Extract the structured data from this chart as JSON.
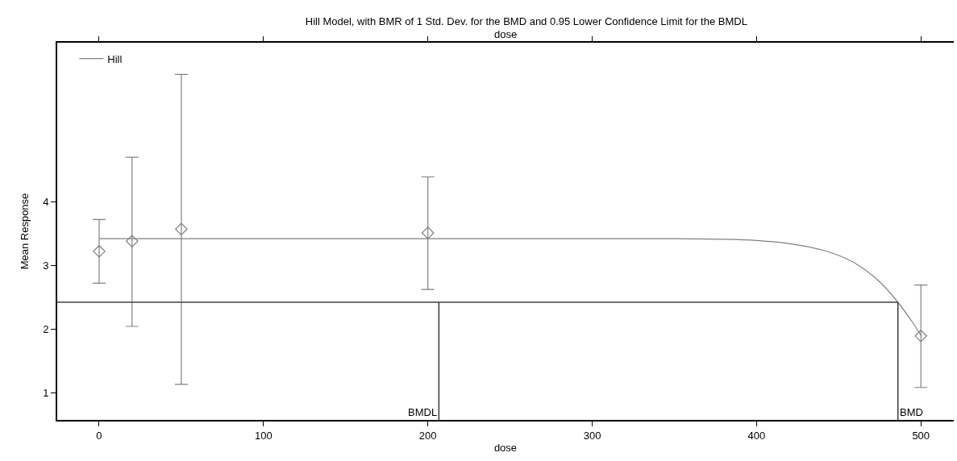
{
  "chart_data": {
    "type": "scatter",
    "title": "Hill Model, with BMR of 1 Std. Dev. for the BMD and 0.95 Lower Confidence Limit for the BMDL",
    "xlabel": "dose",
    "ylabel": "Mean Response",
    "x2label": "dose",
    "xlim": [
      -25.5,
      520
    ],
    "xticks": [
      0,
      100,
      200,
      300,
      400,
      500
    ],
    "ylim": [
      0.57,
      6.5
    ],
    "yticks": [
      1,
      2,
      3,
      4
    ],
    "series": [
      {
        "color": "#808080",
        "marker": "diamond",
        "x": [
          0,
          20,
          50,
          200,
          500
        ],
        "values": [
          3.22,
          3.38,
          3.57,
          3.51,
          1.89
        ],
        "errors": [
          [
            2.72,
            3.72
          ],
          [
            2.04,
            4.7
          ],
          [
            1.13,
            6.0
          ],
          [
            2.62,
            4.39
          ],
          [
            1.08,
            2.69
          ]
        ]
      },
      {
        "type": "line",
        "name": "Hill",
        "color": "#808080",
        "marker": "none",
        "x": [
          0,
          100,
          200,
          300,
          350,
          380,
          400,
          420,
          440,
          455,
          465,
          475,
          486,
          495,
          500
        ],
        "values": [
          3.42,
          3.42,
          3.42,
          3.42,
          3.42,
          3.41,
          3.39,
          3.34,
          3.24,
          3.1,
          2.95,
          2.74,
          2.42,
          2.1,
          1.9
        ]
      }
    ],
    "ref_lines": [
      {
        "axis": "y",
        "value": 2.42,
        "label": null,
        "color": "#404040"
      },
      {
        "axis": "x",
        "value": 206.7,
        "label": "BMDL",
        "color": "#404040"
      },
      {
        "axis": "x",
        "value": 486,
        "label": "BMD",
        "color": "#404040"
      }
    ],
    "legend": "top left"
  }
}
